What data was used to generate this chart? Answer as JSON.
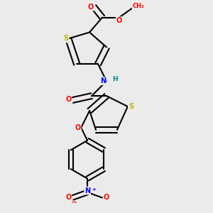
{
  "bg_color": "#ebebeb",
  "bond_color": "#000000",
  "bond_width": 1.5,
  "atom_colors": {
    "S": "#b8b800",
    "O": "#ff0000",
    "N": "#0000ff",
    "H": "#008080",
    "C": "#000000"
  },
  "figsize": [
    3.0,
    3.0
  ],
  "dpi": 100
}
